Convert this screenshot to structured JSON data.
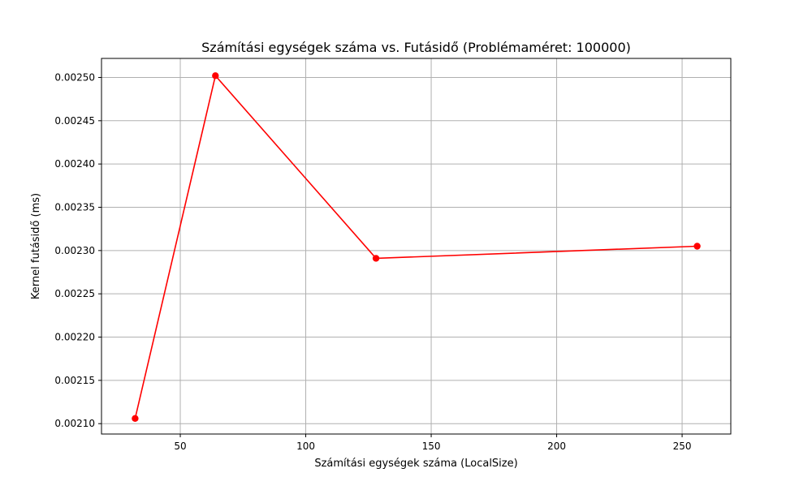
{
  "chart_data": {
    "type": "line",
    "title": "Számítási egységek száma vs. Futásidő (Problémaméret: 100000)",
    "xlabel": "Számítási egységek száma (LocalSize)",
    "ylabel": "Kernel futásidő (ms)",
    "x": [
      32,
      64,
      128,
      256
    ],
    "series": [
      {
        "name": "",
        "values": [
          0.002106,
          0.002502,
          0.002291,
          0.002305
        ],
        "color": "#ff0000",
        "marker": "circle"
      }
    ],
    "xlim": [
      18.6,
      269.4
    ],
    "ylim": [
      0.002088,
      0.002522
    ],
    "xticks": [
      50,
      100,
      150,
      200,
      250
    ],
    "xtick_labels": [
      "50",
      "100",
      "150",
      "200",
      "250"
    ],
    "yticks": [
      0.0021,
      0.00215,
      0.0022,
      0.00225,
      0.0023,
      0.00235,
      0.0024,
      0.00245,
      0.0025
    ],
    "ytick_labels": [
      "0.00210",
      "0.00215",
      "0.00220",
      "0.00225",
      "0.00230",
      "0.00235",
      "0.00240",
      "0.00245",
      "0.00250"
    ],
    "grid": true,
    "legend": "none"
  }
}
